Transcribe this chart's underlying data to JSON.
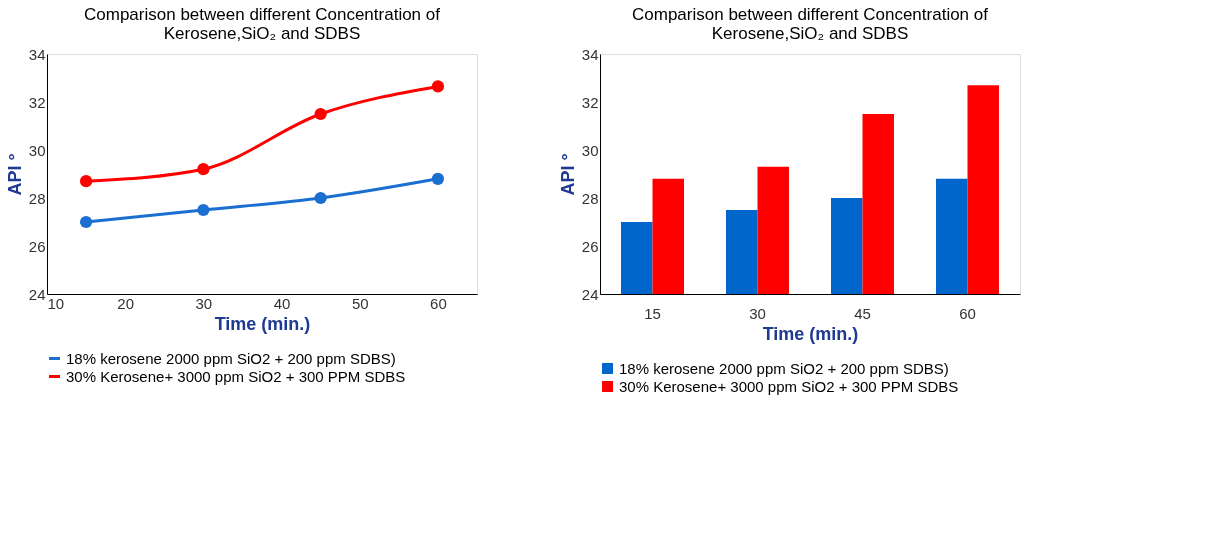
{
  "chart_data": [
    {
      "type": "line",
      "title": [
        "Comparison between different Concentration of",
        "Kerosene,SiO₂ and SDBS"
      ],
      "xlabel": "Time (min.)",
      "ylabel": "API °",
      "x": [
        15,
        30,
        45,
        60
      ],
      "xlim": [
        10,
        65
      ],
      "xticks": [
        10,
        20,
        30,
        40,
        50,
        60
      ],
      "ylim": [
        24,
        34
      ],
      "yticks": [
        24,
        26,
        28,
        30,
        32,
        34
      ],
      "grid": false,
      "legend": "bottom",
      "marker": "circle",
      "series": [
        {
          "name": "18% kerosene 2000 ppm SiO2 + 200 ppm SDBS)",
          "color": "#1a6fd1",
          "values": [
            27.0,
            27.5,
            28.0,
            28.8
          ]
        },
        {
          "name": "30% Kerosene+ 3000 ppm SiO2 + 300 PPM SDBS",
          "color": "#ff0000",
          "values": [
            28.7,
            29.2,
            31.5,
            32.65
          ]
        }
      ]
    },
    {
      "type": "bar",
      "title": [
        "Comparison between different Concentration of",
        "Kerosene,SiO₂ and SDBS"
      ],
      "xlabel": "Time (min.)",
      "ylabel": "API °",
      "categories": [
        "15",
        "30",
        "45",
        "60"
      ],
      "ylim": [
        24,
        34
      ],
      "yticks": [
        24,
        26,
        28,
        30,
        32,
        34
      ],
      "grid": false,
      "legend": "bottom",
      "series": [
        {
          "name": "18% kerosene 2000 ppm SiO2 + 200 ppm SDBS)",
          "color": "#0066cc",
          "values": [
            27.0,
            27.5,
            28.0,
            28.8
          ]
        },
        {
          "name": "30% Kerosene+ 3000 ppm SiO2 + 300 PPM SDBS",
          "color": "#ff0000",
          "values": [
            28.8,
            29.3,
            31.5,
            32.7
          ]
        }
      ]
    }
  ]
}
